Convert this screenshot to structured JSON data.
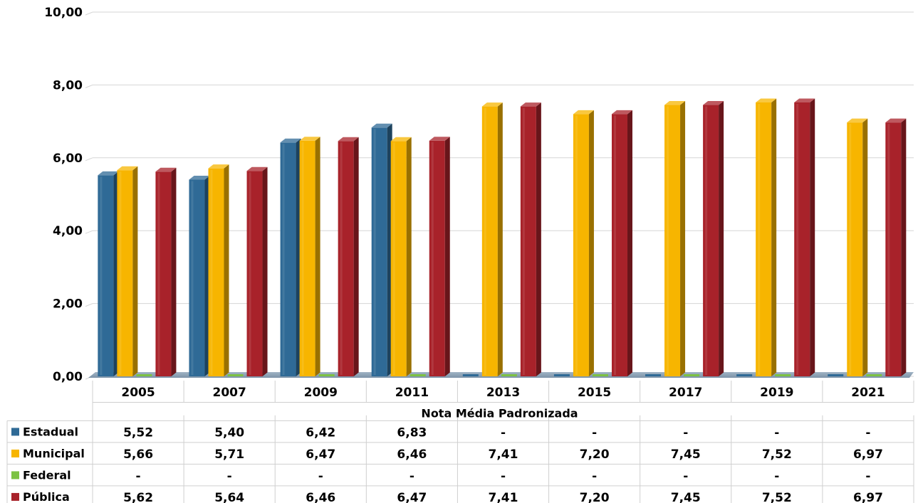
{
  "chart_data": {
    "type": "bar",
    "categories": [
      "2005",
      "2007",
      "2009",
      "2011",
      "2013",
      "2015",
      "2017",
      "2019",
      "2021"
    ],
    "table_subtitle": "Nota Média Padronizada",
    "ylim": [
      0,
      10
    ],
    "yticks": [
      "0,00",
      "2,00",
      "4,00",
      "6,00",
      "8,00",
      "10,00"
    ],
    "ytick_values": [
      0,
      2,
      4,
      6,
      8,
      10
    ],
    "grid": true,
    "legend": "table-bottom",
    "series": [
      {
        "name": "Estadual",
        "color": "#2f6a96",
        "values": [
          5.52,
          5.4,
          6.42,
          6.83,
          null,
          null,
          null,
          null,
          null
        ],
        "labels": [
          "5,52",
          "5,40",
          "6,42",
          "6,83",
          "-",
          "-",
          "-",
          "-",
          "-"
        ]
      },
      {
        "name": "Municipal",
        "color": "#f7b500",
        "values": [
          5.66,
          5.71,
          6.47,
          6.46,
          7.41,
          7.2,
          7.45,
          7.52,
          6.97
        ],
        "labels": [
          "5,66",
          "5,71",
          "6,47",
          "6,46",
          "7,41",
          "7,20",
          "7,45",
          "7,52",
          "6,97"
        ]
      },
      {
        "name": "Federal",
        "color": "#7cc242",
        "values": [
          null,
          null,
          null,
          null,
          null,
          null,
          null,
          null,
          null
        ],
        "labels": [
          "-",
          "-",
          "-",
          "-",
          "-",
          "-",
          "-",
          "-",
          "-"
        ]
      },
      {
        "name": "Pública",
        "color": "#a8222a",
        "values": [
          5.62,
          5.64,
          6.46,
          6.47,
          7.41,
          7.2,
          7.45,
          7.52,
          6.97
        ],
        "labels": [
          "5,62",
          "5,64",
          "6,46",
          "6,47",
          "7,41",
          "7,20",
          "7,45",
          "7,52",
          "6,97"
        ]
      }
    ]
  }
}
